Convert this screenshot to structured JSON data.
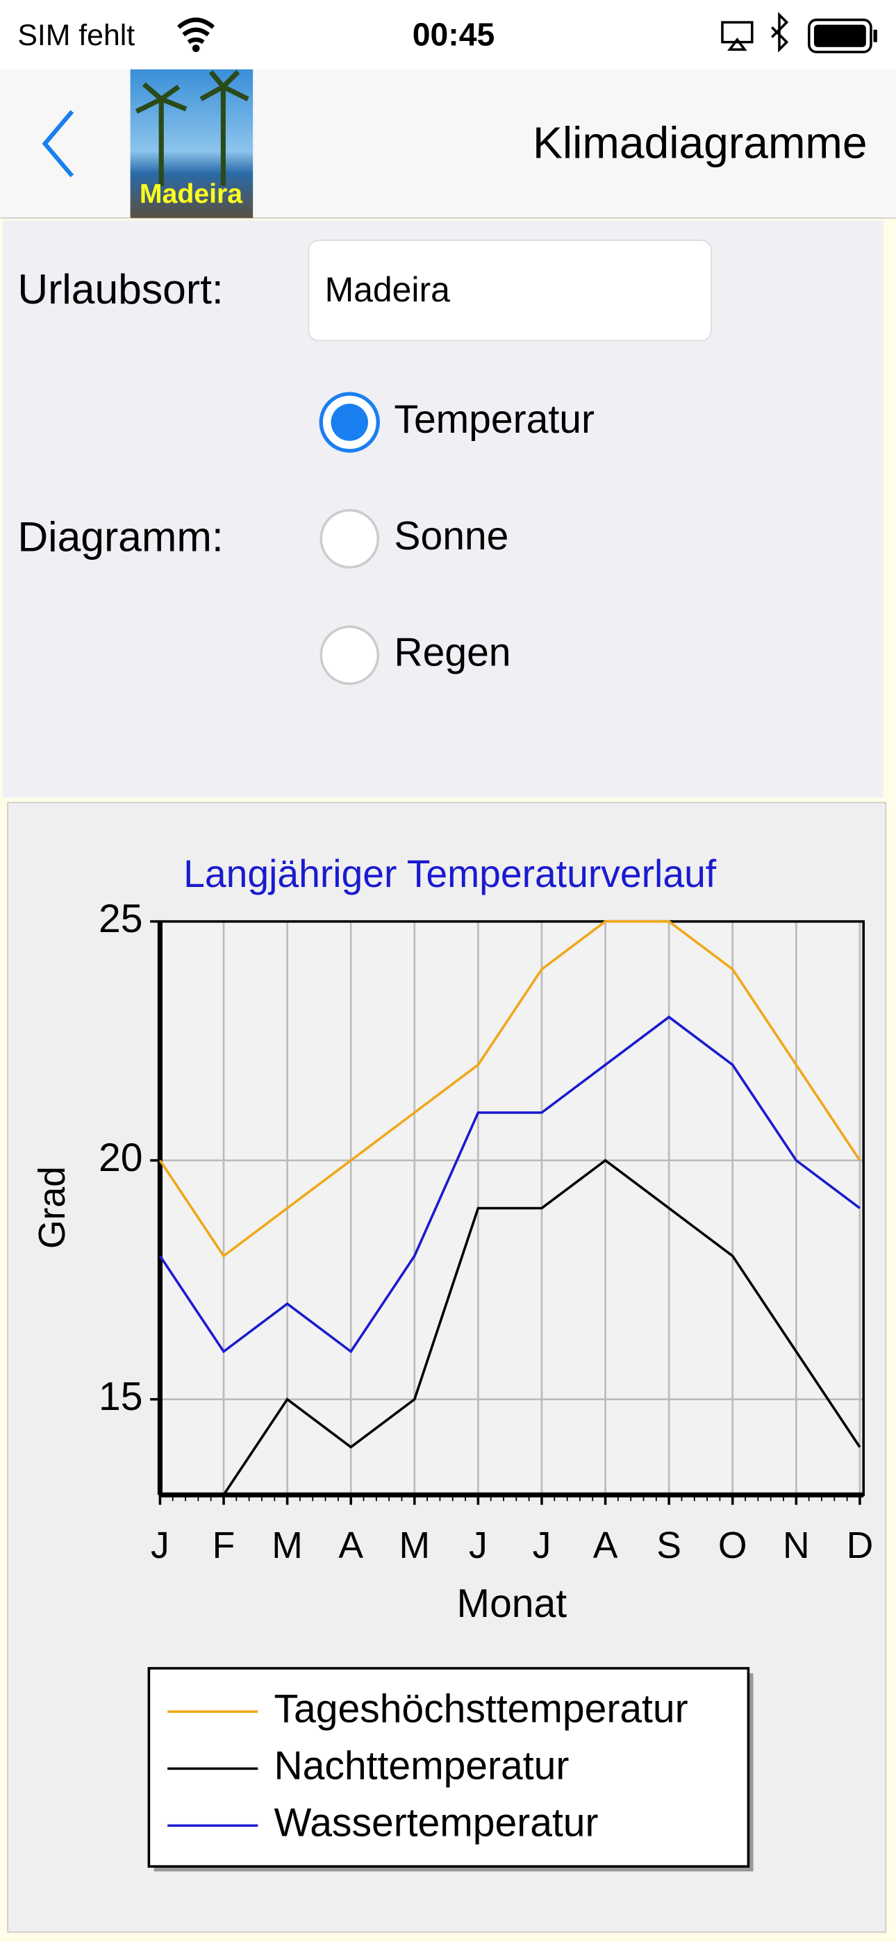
{
  "status_bar": {
    "carrier": "SIM fehlt",
    "time": "00:45"
  },
  "nav": {
    "title": "Klimadiagramme",
    "image_label": "Madeira"
  },
  "form": {
    "location_label": "Urlaubsort:",
    "location_value": "Madeira",
    "diagram_label": "Diagramm:",
    "options": [
      "Temperatur",
      "Sonne",
      "Regen"
    ],
    "selected": 0
  },
  "chart_data": {
    "type": "line",
    "title": "Langjähriger Temperaturverlauf",
    "xlabel": "Monat",
    "ylabel": "Grad",
    "categories": [
      "J",
      "F",
      "M",
      "A",
      "M",
      "J",
      "J",
      "A",
      "S",
      "O",
      "N",
      "D"
    ],
    "ylim": [
      13,
      25
    ],
    "yticks": [
      15,
      20,
      25
    ],
    "grid": true,
    "series": [
      {
        "name": "Tageshöchsttemperatur",
        "color": "#f0a818",
        "values": [
          20,
          18,
          19,
          20,
          21,
          22,
          24,
          25,
          25,
          24,
          22,
          20
        ]
      },
      {
        "name": "Nachttemperatur",
        "color": "#000000",
        "values": [
          13,
          13,
          15,
          14,
          15,
          19,
          19,
          20,
          19,
          18,
          16,
          14
        ]
      },
      {
        "name": "Wassertemperatur",
        "color": "#1a1ad0",
        "values": [
          18,
          16,
          17,
          16,
          18,
          21,
          21,
          22,
          23,
          22,
          20,
          19
        ]
      }
    ]
  }
}
